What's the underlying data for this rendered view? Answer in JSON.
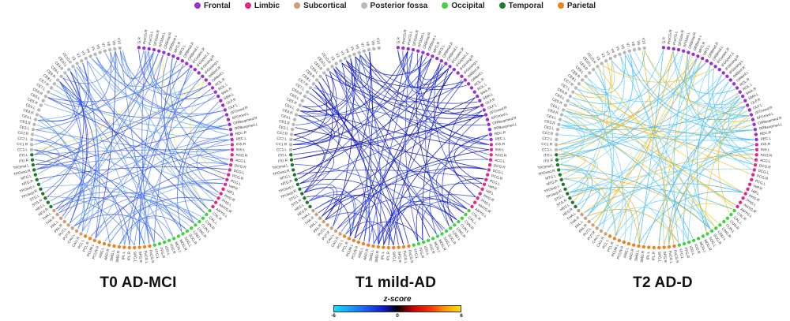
{
  "legend": [
    {
      "label": "Frontal",
      "color": "#9b30d0"
    },
    {
      "label": "Limbic",
      "color": "#e0278a"
    },
    {
      "label": "Subcortical",
      "color": "#c8a07a"
    },
    {
      "label": "Posterior fossa",
      "color": "#b8b8b8"
    },
    {
      "label": "Occipital",
      "color": "#3fd43f"
    },
    {
      "label": "Temporal",
      "color": "#1f7a2e"
    },
    {
      "label": "Parietal",
      "color": "#f0821e"
    }
  ],
  "nodes": [
    {
      "label": "G.R",
      "group": "Frontal"
    },
    {
      "label": "PreCG.R",
      "group": "Frontal"
    },
    {
      "label": "PreCG.L",
      "group": "Frontal"
    },
    {
      "label": "SFGdor.R",
      "group": "Frontal"
    },
    {
      "label": "SFGdor.L",
      "group": "Frontal"
    },
    {
      "label": "ORBsup.R",
      "group": "Frontal"
    },
    {
      "label": "ORBsup.L",
      "group": "Frontal"
    },
    {
      "label": "MFG.R",
      "group": "Frontal"
    },
    {
      "label": "MFG.L",
      "group": "Frontal"
    },
    {
      "label": "ORBmid.R",
      "group": "Frontal"
    },
    {
      "label": "ORBmid.L",
      "group": "Frontal"
    },
    {
      "label": "IFGoperc.R",
      "group": "Frontal"
    },
    {
      "label": "IFGoperc.L",
      "group": "Frontal"
    },
    {
      "label": "IFGtriang.R",
      "group": "Frontal"
    },
    {
      "label": "IFGtriang.L",
      "group": "Frontal"
    },
    {
      "label": "ORBinf.R",
      "group": "Frontal"
    },
    {
      "label": "ORBinf.L",
      "group": "Frontal"
    },
    {
      "label": "ROL.R",
      "group": "Frontal"
    },
    {
      "label": "ROL.L",
      "group": "Frontal"
    },
    {
      "label": "SMA.R",
      "group": "Frontal"
    },
    {
      "label": "SMA.L",
      "group": "Frontal"
    },
    {
      "label": "OLF.R",
      "group": "Frontal"
    },
    {
      "label": "OLF.L",
      "group": "Frontal"
    },
    {
      "label": "SFGmed.R",
      "group": "Frontal"
    },
    {
      "label": "SFGmed.L",
      "group": "Frontal"
    },
    {
      "label": "ORBsupmed.R",
      "group": "Frontal"
    },
    {
      "label": "ORBsupmed.L",
      "group": "Frontal"
    },
    {
      "label": "REC.R",
      "group": "Frontal"
    },
    {
      "label": "REC.L",
      "group": "Frontal"
    },
    {
      "label": "INS.R",
      "group": "Limbic"
    },
    {
      "label": "INS.L",
      "group": "Limbic"
    },
    {
      "label": "ACG.R",
      "group": "Limbic"
    },
    {
      "label": "ACG.L",
      "group": "Limbic"
    },
    {
      "label": "DCG.R",
      "group": "Limbic"
    },
    {
      "label": "DCG.L",
      "group": "Limbic"
    },
    {
      "label": "PCG.R",
      "group": "Limbic"
    },
    {
      "label": "PCG.L",
      "group": "Limbic"
    },
    {
      "label": "HIP.R",
      "group": "Limbic"
    },
    {
      "label": "HIP.L",
      "group": "Limbic"
    },
    {
      "label": "PHG.R",
      "group": "Limbic"
    },
    {
      "label": "PHG.L",
      "group": "Limbic"
    },
    {
      "label": "AMYG.R",
      "group": "Limbic"
    },
    {
      "label": "AMYG.L",
      "group": "Limbic"
    },
    {
      "label": "CAL.R",
      "group": "Occipital"
    },
    {
      "label": "CAL.L",
      "group": "Occipital"
    },
    {
      "label": "CUN.R",
      "group": "Occipital"
    },
    {
      "label": "CUN.L",
      "group": "Occipital"
    },
    {
      "label": "LING.R",
      "group": "Occipital"
    },
    {
      "label": "LING.L",
      "group": "Occipital"
    },
    {
      "label": "SOG.R",
      "group": "Occipital"
    },
    {
      "label": "SOG.L",
      "group": "Occipital"
    },
    {
      "label": "MOG.R",
      "group": "Occipital"
    },
    {
      "label": "MOG.L",
      "group": "Occipital"
    },
    {
      "label": "IOG.R",
      "group": "Occipital"
    },
    {
      "label": "IOG.L",
      "group": "Occipital"
    },
    {
      "label": "FFG.R",
      "group": "Occipital"
    },
    {
      "label": "FFG.L",
      "group": "Occipital"
    },
    {
      "label": "PoCG.R",
      "group": "Parietal"
    },
    {
      "label": "PoCG.L",
      "group": "Parietal"
    },
    {
      "label": "SPG.R",
      "group": "Parietal"
    },
    {
      "label": "SPG.L",
      "group": "Parietal"
    },
    {
      "label": "IPL.R",
      "group": "Parietal"
    },
    {
      "label": "IPL.L",
      "group": "Parietal"
    },
    {
      "label": "SMG.R",
      "group": "Parietal"
    },
    {
      "label": "SMG.L",
      "group": "Parietal"
    },
    {
      "label": "ANG.R",
      "group": "Parietal"
    },
    {
      "label": "ANG.L",
      "group": "Parietal"
    },
    {
      "label": "PCUN.R",
      "group": "Parietal"
    },
    {
      "label": "PCUN.L",
      "group": "Parietal"
    },
    {
      "label": "PCL.R",
      "group": "Parietal"
    },
    {
      "label": "PCL.L",
      "group": "Parietal"
    },
    {
      "label": "CAU.R",
      "group": "Subcortical"
    },
    {
      "label": "CAU.L",
      "group": "Subcortical"
    },
    {
      "label": "PUT.R",
      "group": "Subcortical"
    },
    {
      "label": "PUT.L",
      "group": "Subcortical"
    },
    {
      "label": "PAL.R",
      "group": "Subcortical"
    },
    {
      "label": "PAL.L",
      "group": "Subcortical"
    },
    {
      "label": "THA.R",
      "group": "Subcortical"
    },
    {
      "label": "THA.L",
      "group": "Subcortical"
    },
    {
      "label": "HES.R",
      "group": "Temporal"
    },
    {
      "label": "HES.L",
      "group": "Temporal"
    },
    {
      "label": "STG.R",
      "group": "Temporal"
    },
    {
      "label": "STG.L",
      "group": "Temporal"
    },
    {
      "label": "TPOsup.R",
      "group": "Temporal"
    },
    {
      "label": "TPOsup.L",
      "group": "Temporal"
    },
    {
      "label": "MTG.R",
      "group": "Temporal"
    },
    {
      "label": "MTG.L",
      "group": "Temporal"
    },
    {
      "label": "TPOmid.R",
      "group": "Temporal"
    },
    {
      "label": "TPOmid.L",
      "group": "Temporal"
    },
    {
      "label": "ITG.R",
      "group": "Temporal"
    },
    {
      "label": "ITG.L",
      "group": "Temporal"
    },
    {
      "label": "CC1.L",
      "group": "Posterior fossa"
    },
    {
      "label": "CC1.R",
      "group": "Posterior fossa"
    },
    {
      "label": "CC2.L",
      "group": "Posterior fossa"
    },
    {
      "label": "CC2.R",
      "group": "Posterior fossa"
    },
    {
      "label": "CE3.L",
      "group": "Posterior fossa"
    },
    {
      "label": "CE3.R",
      "group": "Posterior fossa"
    },
    {
      "label": "CE4.L",
      "group": "Posterior fossa"
    },
    {
      "label": "CE4.R",
      "group": "Posterior fossa"
    },
    {
      "label": "CE5.L",
      "group": "Posterior fossa"
    },
    {
      "label": "CE5.R",
      "group": "Posterior fossa"
    },
    {
      "label": "CE6.L",
      "group": "Posterior fossa"
    },
    {
      "label": "CE6.R",
      "group": "Posterior fossa"
    },
    {
      "label": "CE7.L",
      "group": "Posterior fossa"
    },
    {
      "label": "CE7.R",
      "group": "Posterior fossa"
    },
    {
      "label": "CE8.L",
      "group": "Posterior fossa"
    },
    {
      "label": "CE8.R",
      "group": "Posterior fossa"
    },
    {
      "label": "CE9.L",
      "group": "Posterior fossa"
    },
    {
      "label": "CE9.R",
      "group": "Posterior fossa"
    },
    {
      "label": "CE10.L",
      "group": "Posterior fossa"
    },
    {
      "label": "CE10.R",
      "group": "Posterior fossa"
    },
    {
      "label": "V1",
      "group": "Posterior fossa"
    },
    {
      "label": "V2",
      "group": "Posterior fossa"
    },
    {
      "label": "V3",
      "group": "Posterior fossa"
    },
    {
      "label": "V4",
      "group": "Posterior fossa"
    },
    {
      "label": "V5",
      "group": "Posterior fossa"
    },
    {
      "label": "V6",
      "group": "Posterior fossa"
    },
    {
      "label": "V7",
      "group": "Posterior fossa"
    },
    {
      "label": "V8",
      "group": "Posterior fossa"
    },
    {
      "label": "V9",
      "group": "Posterior fossa"
    },
    {
      "label": "V10",
      "group": "Posterior fossa"
    }
  ],
  "panels": [
    {
      "title": "T0 AD-MCI",
      "palette": "blue",
      "seed": 11
    },
    {
      "title": "T1 mild-AD",
      "palette": "darkblue",
      "seed": 29
    },
    {
      "title": "T2 AD-D",
      "palette": "cyanyellow",
      "seed": 53
    }
  ],
  "colorbar": {
    "title": "z-score",
    "ticks": [
      "-6",
      "0",
      "6"
    ]
  }
}
